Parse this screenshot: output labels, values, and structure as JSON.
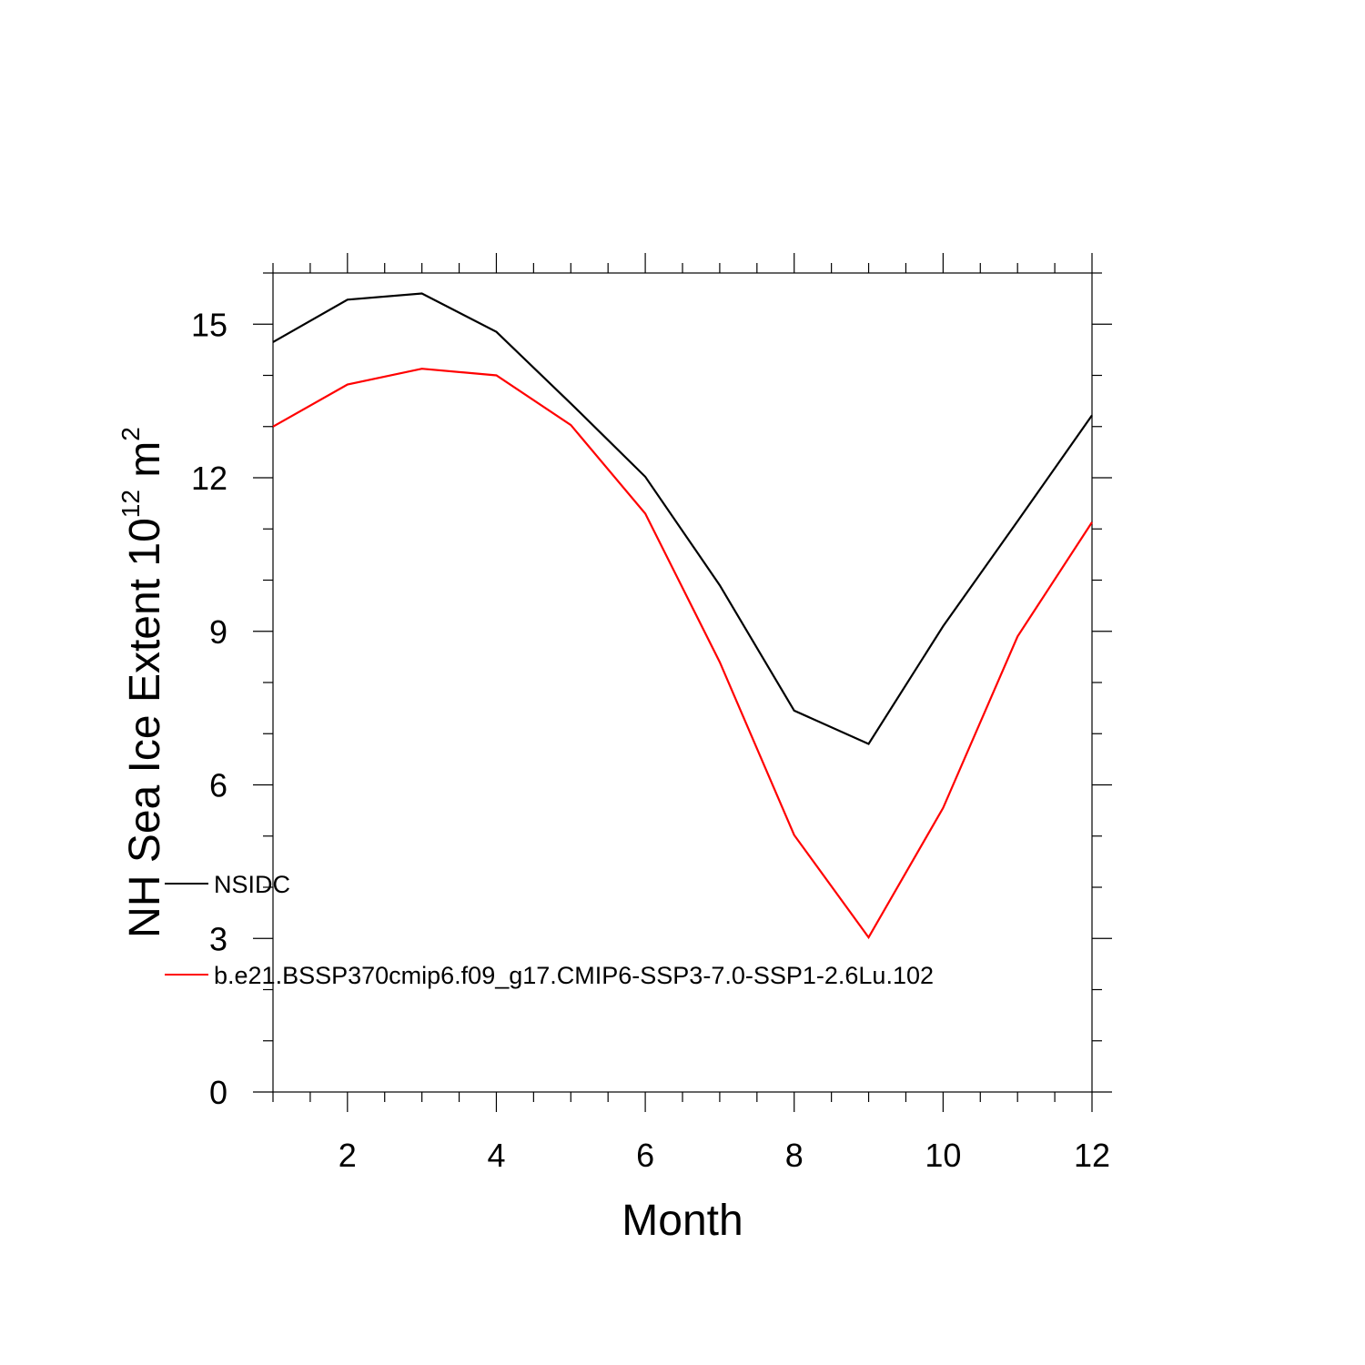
{
  "chart_data": {
    "type": "line",
    "title": "",
    "xlabel": "Month",
    "ylabel_main": "NH Sea Ice Extent 10",
    "ylabel_sup1": "12",
    "ylabel_unit": " m",
    "ylabel_sup2": "2",
    "xlim": [
      1,
      12
    ],
    "ylim": [
      0,
      16
    ],
    "x_ticks": [
      2,
      4,
      6,
      8,
      10,
      12
    ],
    "x_tick_labels": [
      "2",
      "4",
      "6",
      "8",
      "10",
      "12"
    ],
    "y_ticks": [
      0,
      3,
      6,
      9,
      12,
      15
    ],
    "y_tick_labels": [
      "0",
      "3",
      "6",
      "9",
      "12",
      "15"
    ],
    "grid": false,
    "legend_position": "lower-left",
    "x": [
      1,
      2,
      3,
      4,
      5,
      6,
      7,
      8,
      9,
      10,
      11,
      12
    ],
    "series": [
      {
        "name": "NSIDC",
        "color": "#000000",
        "values": [
          14.65,
          15.48,
          15.6,
          14.85,
          13.45,
          12.02,
          9.9,
          7.45,
          6.8,
          9.1,
          11.15,
          13.22
        ]
      },
      {
        "name": "b.e21.BSSP370cmip6.f09_g17.CMIP6-SSP3-7.0-SSP1-2.6Lu.102",
        "color": "#ff0000",
        "values": [
          13.0,
          13.82,
          14.13,
          14.0,
          13.03,
          11.3,
          8.4,
          5.02,
          3.02,
          5.55,
          8.9,
          11.13
        ]
      }
    ]
  }
}
